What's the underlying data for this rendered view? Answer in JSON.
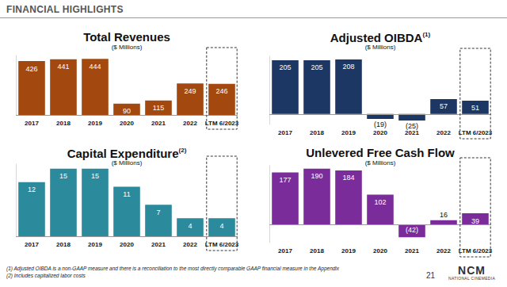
{
  "header": {
    "title": "FINANCIAL HIGHLIGHTS"
  },
  "chart_data": [
    {
      "type": "bar",
      "title": "Total Revenues",
      "subtitle": "($ Millions)",
      "categories": [
        "2017",
        "2018",
        "2019",
        "2020",
        "2021",
        "2022",
        "LTM 6/2023"
      ],
      "values": [
        426,
        441,
        444,
        90,
        115,
        249,
        246
      ],
      "color": "#a3480f",
      "ylim": [
        0,
        470
      ],
      "grid": false,
      "data_labels": true,
      "tick_labels": "x"
    },
    {
      "type": "bar",
      "title": "Adjusted OIBDA",
      "title_note": "(1)",
      "subtitle": "($ Millions)",
      "categories": [
        "2017",
        "2018",
        "2019",
        "2020",
        "2021",
        "2022",
        "LTM 6/2023"
      ],
      "values": [
        205,
        205,
        208,
        -19,
        -25,
        57,
        51
      ],
      "value_labels": [
        "205",
        "205",
        "208",
        "(19)",
        "(25)",
        "57",
        "51"
      ],
      "color": "#1c3764",
      "ylim": [
        -40,
        220
      ],
      "grid": false,
      "data_labels": true,
      "tick_labels": "x"
    },
    {
      "type": "bar",
      "title": "Capital Expenditure",
      "title_note": "(2)",
      "subtitle": "($ Millions)",
      "categories": [
        "2017",
        "2018",
        "2019",
        "2020",
        "2021",
        "2022",
        "LTM 6/2023"
      ],
      "values": [
        12,
        15,
        15,
        11,
        7,
        4,
        4
      ],
      "color": "#2b8a9c",
      "ylim": [
        0,
        16
      ],
      "grid": false,
      "data_labels": true,
      "tick_labels": "x"
    },
    {
      "type": "bar",
      "title": "Unlevered Free Cash Flow",
      "subtitle": "($ Millions)",
      "categories": [
        "2017",
        "2018",
        "2019",
        "2020",
        "2021",
        "2022",
        "LTM 6/2023"
      ],
      "values": [
        177,
        190,
        184,
        102,
        -42,
        16,
        39
      ],
      "value_labels": [
        "177",
        "190",
        "184",
        "102",
        "(42)",
        "16",
        "39"
      ],
      "color": "#7b2c9b",
      "ylim": [
        -60,
        200
      ],
      "grid": false,
      "data_labels": true,
      "tick_labels": "x"
    }
  ],
  "footnotes": [
    "(1) Adjusted OIBDA is a non-GAAP measure and there is a reconciliation to the most directly comparable GAAP financial measure in the Appendix",
    "(2) Includes capitalized labor costs"
  ],
  "page_number": 21,
  "logo": {
    "text": "NCM",
    "subtext": "NATIONAL CINEMEDIA"
  }
}
